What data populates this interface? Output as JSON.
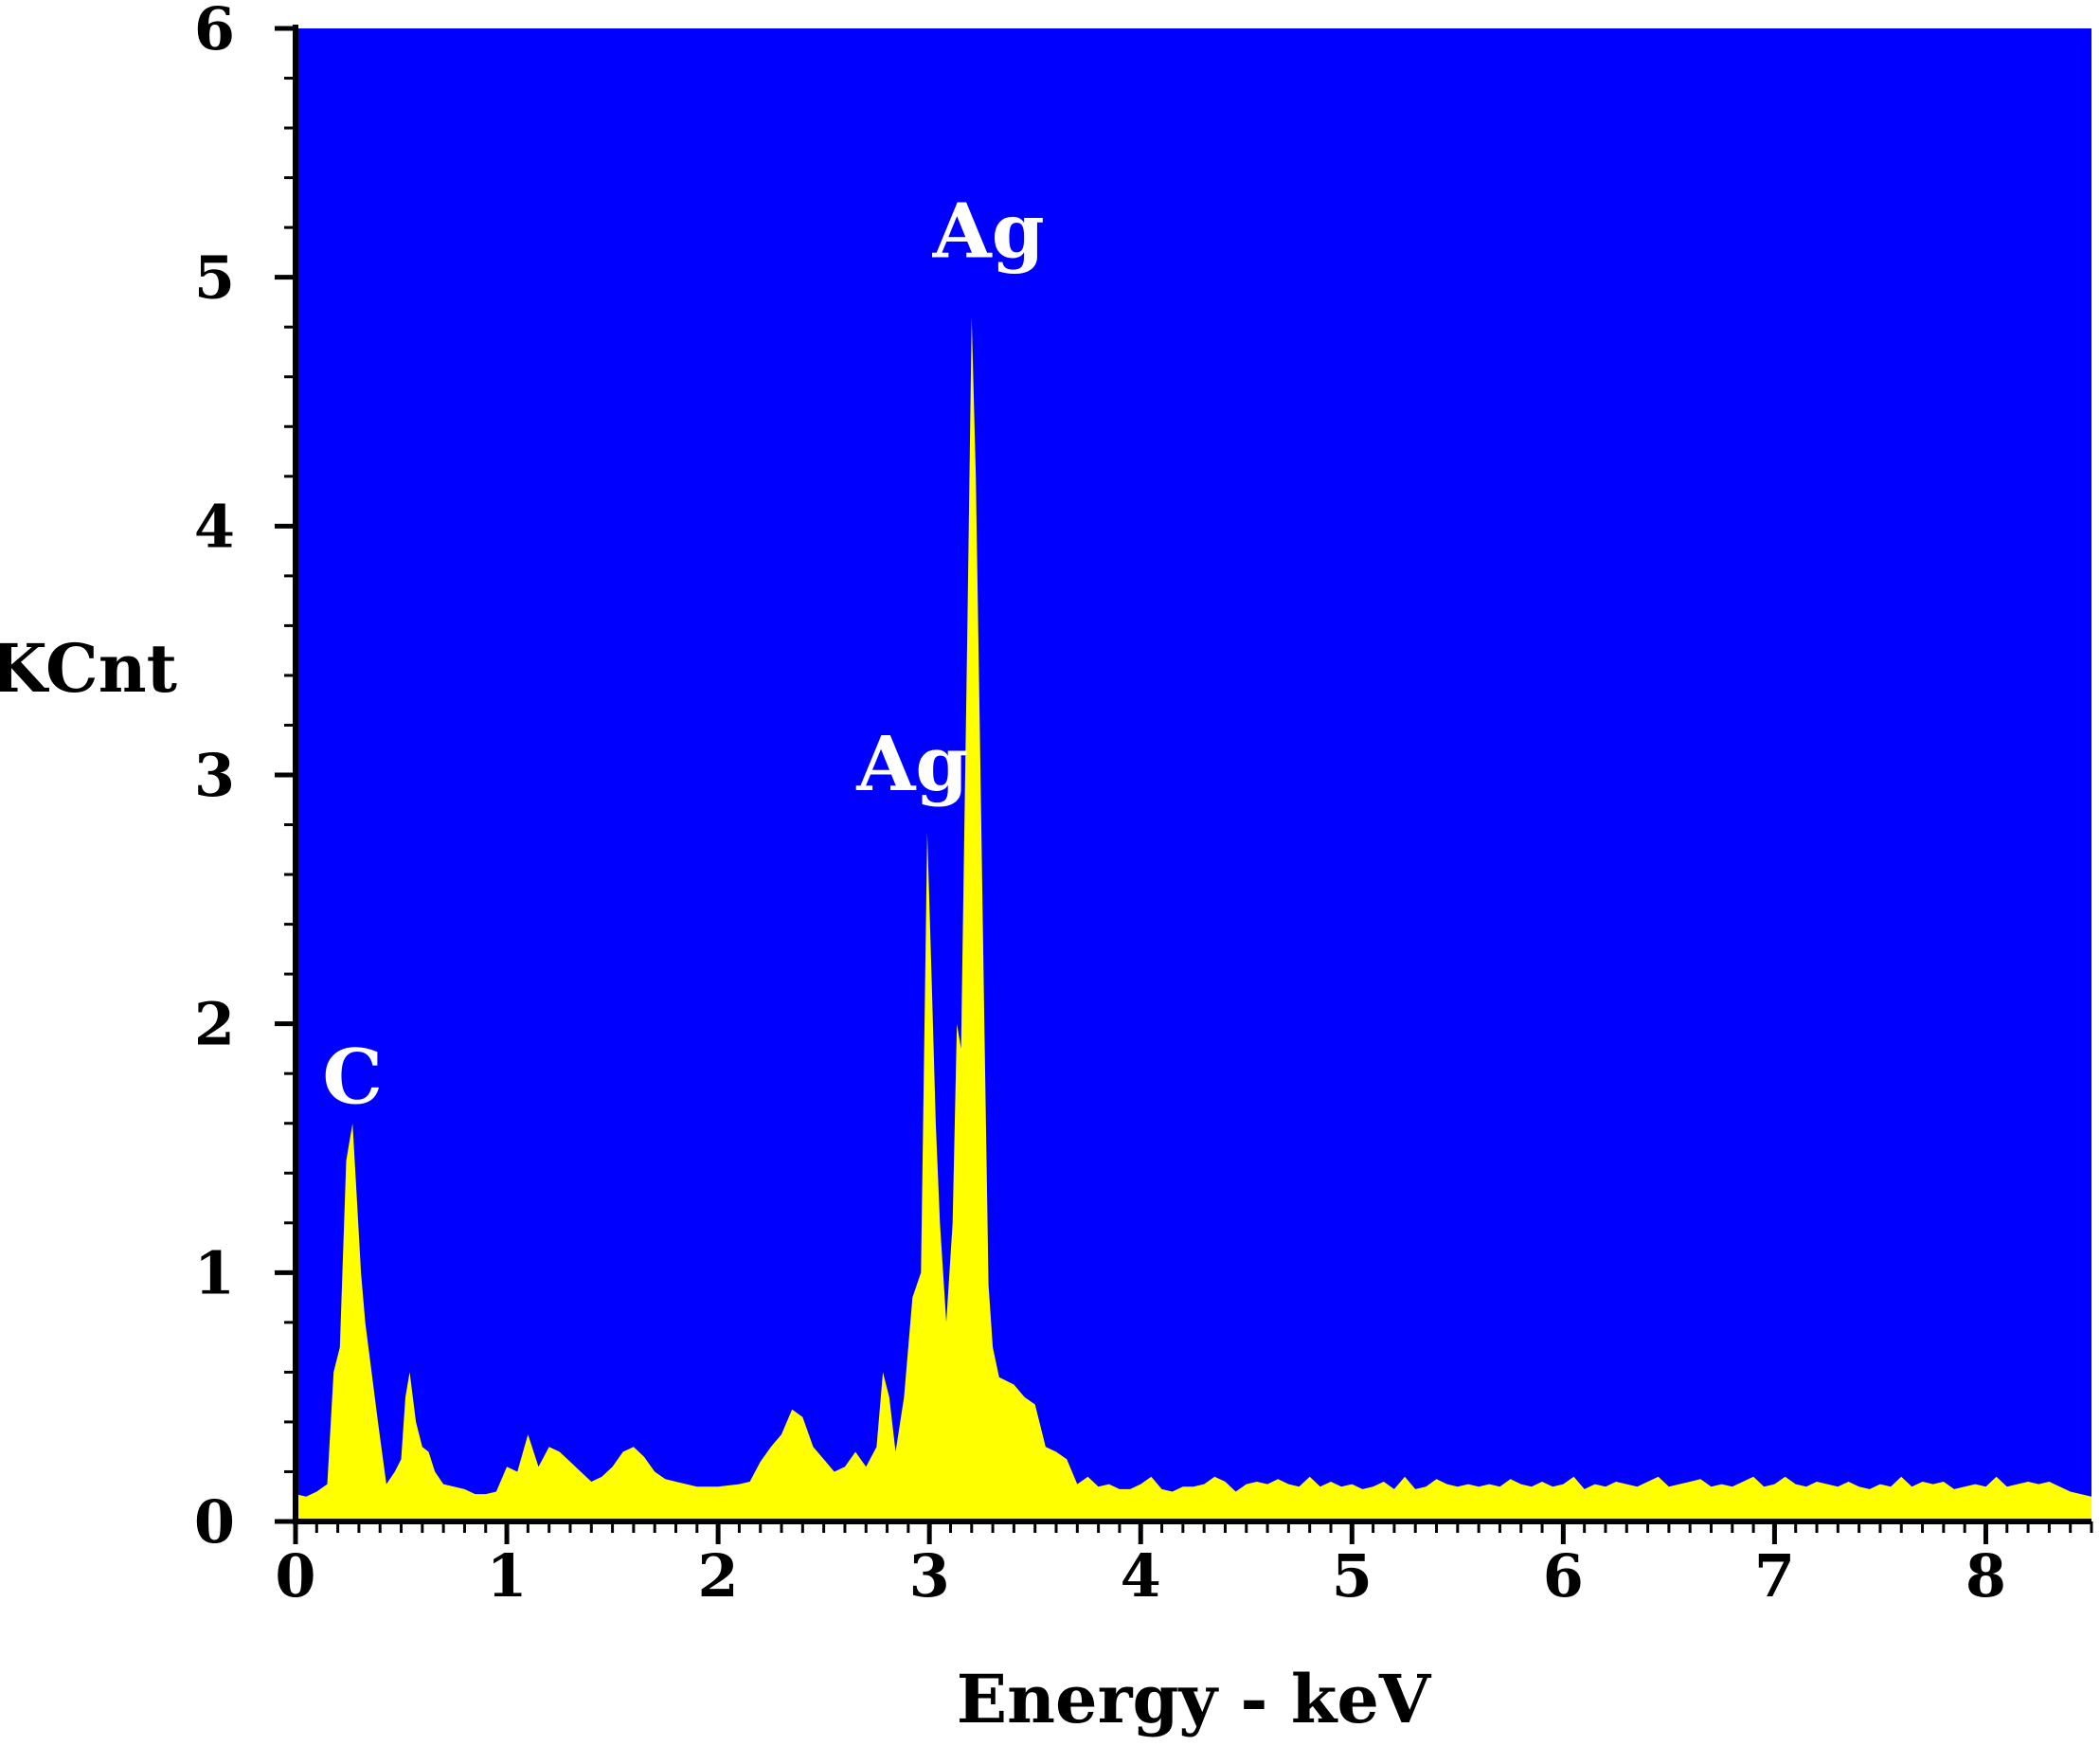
{
  "chart_data": {
    "type": "area",
    "title": "",
    "xlabel": "Energy - keV",
    "ylabel": "KCnt",
    "xlim": [
      0,
      8.5
    ],
    "ylim": [
      0,
      6
    ],
    "x_ticks": [
      "0",
      "1",
      "2",
      "3",
      "4",
      "5",
      "6",
      "7",
      "8"
    ],
    "y_ticks": [
      "0",
      "1",
      "2",
      "3",
      "4",
      "5",
      "6"
    ],
    "grid": false,
    "legend": "none",
    "colors": {
      "plot_background": "#0000ff",
      "series_fill": "#ffff00",
      "peak_label": "#ffffff",
      "axis": "#000000"
    },
    "annotations": [
      {
        "text": "C",
        "x": 0.27,
        "y": 1.68
      },
      {
        "text": "Ag",
        "x": 2.92,
        "y": 2.94
      },
      {
        "text": "Ag",
        "x": 3.28,
        "y": 5.08
      }
    ],
    "series": [
      {
        "points": [
          [
            0.0,
            0.11
          ],
          [
            0.05,
            0.1
          ],
          [
            0.1,
            0.12
          ],
          [
            0.15,
            0.15
          ],
          [
            0.18,
            0.6
          ],
          [
            0.21,
            0.7
          ],
          [
            0.24,
            1.45
          ],
          [
            0.27,
            1.6
          ],
          [
            0.29,
            1.3
          ],
          [
            0.31,
            1.0
          ],
          [
            0.33,
            0.8
          ],
          [
            0.36,
            0.6
          ],
          [
            0.39,
            0.4
          ],
          [
            0.43,
            0.15
          ],
          [
            0.47,
            0.2
          ],
          [
            0.5,
            0.25
          ],
          [
            0.52,
            0.5
          ],
          [
            0.54,
            0.6
          ],
          [
            0.57,
            0.4
          ],
          [
            0.6,
            0.3
          ],
          [
            0.63,
            0.28
          ],
          [
            0.66,
            0.2
          ],
          [
            0.7,
            0.15
          ],
          [
            0.75,
            0.14
          ],
          [
            0.8,
            0.13
          ],
          [
            0.85,
            0.11
          ],
          [
            0.9,
            0.11
          ],
          [
            0.95,
            0.12
          ],
          [
            1.0,
            0.22
          ],
          [
            1.05,
            0.2
          ],
          [
            1.1,
            0.35
          ],
          [
            1.15,
            0.22
          ],
          [
            1.2,
            0.3
          ],
          [
            1.25,
            0.28
          ],
          [
            1.3,
            0.24
          ],
          [
            1.35,
            0.2
          ],
          [
            1.4,
            0.16
          ],
          [
            1.45,
            0.18
          ],
          [
            1.5,
            0.22
          ],
          [
            1.55,
            0.28
          ],
          [
            1.6,
            0.3
          ],
          [
            1.65,
            0.26
          ],
          [
            1.7,
            0.2
          ],
          [
            1.75,
            0.17
          ],
          [
            1.8,
            0.16
          ],
          [
            1.9,
            0.14
          ],
          [
            2.0,
            0.14
          ],
          [
            2.1,
            0.15
          ],
          [
            2.15,
            0.16
          ],
          [
            2.2,
            0.24
          ],
          [
            2.25,
            0.3
          ],
          [
            2.3,
            0.35
          ],
          [
            2.35,
            0.45
          ],
          [
            2.4,
            0.42
          ],
          [
            2.45,
            0.3
          ],
          [
            2.5,
            0.25
          ],
          [
            2.55,
            0.2
          ],
          [
            2.6,
            0.22
          ],
          [
            2.65,
            0.28
          ],
          [
            2.7,
            0.22
          ],
          [
            2.75,
            0.3
          ],
          [
            2.78,
            0.6
          ],
          [
            2.81,
            0.5
          ],
          [
            2.84,
            0.28
          ],
          [
            2.88,
            0.5
          ],
          [
            2.92,
            0.9
          ],
          [
            2.96,
            1.0
          ],
          [
            2.99,
            2.77
          ],
          [
            3.01,
            2.2
          ],
          [
            3.03,
            1.6
          ],
          [
            3.05,
            1.2
          ],
          [
            3.08,
            0.8
          ],
          [
            3.11,
            1.2
          ],
          [
            3.13,
            2.0
          ],
          [
            3.15,
            1.9
          ],
          [
            3.18,
            3.6
          ],
          [
            3.2,
            4.84
          ],
          [
            3.22,
            4.2
          ],
          [
            3.24,
            3.11
          ],
          [
            3.26,
            2.0
          ],
          [
            3.28,
            0.95
          ],
          [
            3.3,
            0.7
          ],
          [
            3.33,
            0.58
          ],
          [
            3.4,
            0.55
          ],
          [
            3.45,
            0.5
          ],
          [
            3.5,
            0.47
          ],
          [
            3.55,
            0.3
          ],
          [
            3.6,
            0.28
          ],
          [
            3.65,
            0.25
          ],
          [
            3.7,
            0.15
          ],
          [
            3.75,
            0.18
          ],
          [
            3.8,
            0.14
          ],
          [
            3.85,
            0.15
          ],
          [
            3.9,
            0.13
          ],
          [
            3.95,
            0.13
          ],
          [
            4.0,
            0.15
          ],
          [
            4.05,
            0.18
          ],
          [
            4.1,
            0.13
          ],
          [
            4.15,
            0.12
          ],
          [
            4.2,
            0.14
          ],
          [
            4.25,
            0.14
          ],
          [
            4.3,
            0.15
          ],
          [
            4.35,
            0.18
          ],
          [
            4.4,
            0.16
          ],
          [
            4.45,
            0.12
          ],
          [
            4.5,
            0.15
          ],
          [
            4.55,
            0.16
          ],
          [
            4.6,
            0.15
          ],
          [
            4.65,
            0.17
          ],
          [
            4.7,
            0.15
          ],
          [
            4.75,
            0.14
          ],
          [
            4.8,
            0.18
          ],
          [
            4.85,
            0.14
          ],
          [
            4.9,
            0.16
          ],
          [
            4.95,
            0.14
          ],
          [
            5.0,
            0.15
          ],
          [
            5.05,
            0.13
          ],
          [
            5.1,
            0.14
          ],
          [
            5.15,
            0.16
          ],
          [
            5.2,
            0.13
          ],
          [
            5.25,
            0.18
          ],
          [
            5.3,
            0.13
          ],
          [
            5.35,
            0.14
          ],
          [
            5.4,
            0.17
          ],
          [
            5.45,
            0.15
          ],
          [
            5.5,
            0.14
          ],
          [
            5.55,
            0.15
          ],
          [
            5.6,
            0.14
          ],
          [
            5.65,
            0.15
          ],
          [
            5.7,
            0.14
          ],
          [
            5.75,
            0.17
          ],
          [
            5.8,
            0.15
          ],
          [
            5.85,
            0.14
          ],
          [
            5.9,
            0.16
          ],
          [
            5.95,
            0.14
          ],
          [
            6.0,
            0.15
          ],
          [
            6.05,
            0.18
          ],
          [
            6.1,
            0.13
          ],
          [
            6.15,
            0.15
          ],
          [
            6.2,
            0.14
          ],
          [
            6.25,
            0.16
          ],
          [
            6.3,
            0.15
          ],
          [
            6.35,
            0.14
          ],
          [
            6.4,
            0.16
          ],
          [
            6.45,
            0.18
          ],
          [
            6.5,
            0.14
          ],
          [
            6.55,
            0.15
          ],
          [
            6.6,
            0.16
          ],
          [
            6.65,
            0.17
          ],
          [
            6.7,
            0.14
          ],
          [
            6.75,
            0.15
          ],
          [
            6.8,
            0.14
          ],
          [
            6.85,
            0.16
          ],
          [
            6.9,
            0.18
          ],
          [
            6.95,
            0.14
          ],
          [
            7.0,
            0.15
          ],
          [
            7.05,
            0.18
          ],
          [
            7.1,
            0.15
          ],
          [
            7.15,
            0.14
          ],
          [
            7.2,
            0.16
          ],
          [
            7.25,
            0.15
          ],
          [
            7.3,
            0.14
          ],
          [
            7.35,
            0.16
          ],
          [
            7.4,
            0.14
          ],
          [
            7.45,
            0.13
          ],
          [
            7.5,
            0.15
          ],
          [
            7.55,
            0.14
          ],
          [
            7.6,
            0.18
          ],
          [
            7.65,
            0.14
          ],
          [
            7.7,
            0.16
          ],
          [
            7.75,
            0.15
          ],
          [
            7.8,
            0.16
          ],
          [
            7.85,
            0.13
          ],
          [
            7.9,
            0.14
          ],
          [
            7.95,
            0.15
          ],
          [
            8.0,
            0.14
          ],
          [
            8.05,
            0.18
          ],
          [
            8.1,
            0.14
          ],
          [
            8.15,
            0.15
          ],
          [
            8.2,
            0.16
          ],
          [
            8.25,
            0.15
          ],
          [
            8.3,
            0.16
          ],
          [
            8.35,
            0.14
          ],
          [
            8.4,
            0.12
          ],
          [
            8.45,
            0.11
          ],
          [
            8.5,
            0.1
          ]
        ]
      }
    ]
  }
}
